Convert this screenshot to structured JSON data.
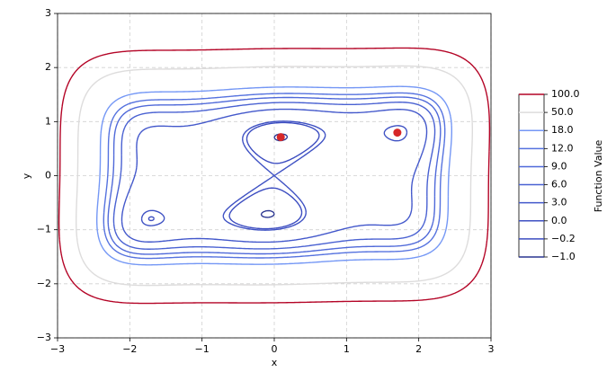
{
  "chart_data": {
    "type": "contour",
    "xlabel": "x",
    "ylabel": "y",
    "colorbar_label": "Function Value",
    "xlim": [
      -3,
      3
    ],
    "ylim": [
      -3,
      3
    ],
    "xticks": [
      {
        "value": -3,
        "label": "−3"
      },
      {
        "value": -2,
        "label": "−2"
      },
      {
        "value": -1,
        "label": "−1"
      },
      0,
      1,
      2,
      3
    ],
    "yticks": [
      {
        "value": -3,
        "label": "−3"
      },
      {
        "value": -2,
        "label": "−2"
      },
      {
        "value": -1,
        "label": "−1"
      },
      0,
      1,
      2,
      3
    ],
    "grid": true,
    "levels": [
      {
        "value": -1,
        "label": "−1.0"
      },
      {
        "value": -0.2,
        "label": "−0.2"
      },
      {
        "value": 0,
        "label": "0.0"
      },
      {
        "value": 3,
        "label": "3.0"
      },
      {
        "value": 6,
        "label": "6.0"
      },
      {
        "value": 9,
        "label": "9.0"
      },
      {
        "value": 12,
        "label": "12.0"
      },
      {
        "value": 18,
        "label": "18.0"
      },
      {
        "value": 50,
        "label": "50.0"
      },
      {
        "value": 100,
        "label": "100.0"
      }
    ],
    "level_colors": [
      "#2a3590",
      "#3b4cc0",
      "#3d50c3",
      "#4358cb",
      "#4961d2",
      "#4f69d9",
      "#5572df",
      "#7497f5",
      "#dddcdc",
      "#b40426"
    ],
    "minima": {
      "x": [
        0.0898,
        1.7036
      ],
      "y": [
        0.7126,
        0.7961
      ],
      "color": "#d62728"
    }
  }
}
